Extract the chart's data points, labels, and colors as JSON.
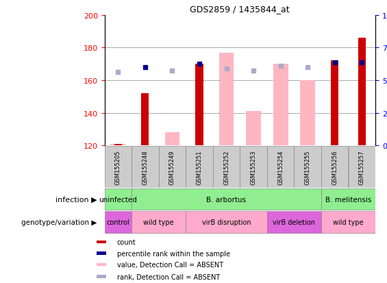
{
  "title": "GDS2859 / 1435844_at",
  "samples": [
    "GSM155205",
    "GSM155248",
    "GSM155249",
    "GSM155251",
    "GSM155252",
    "GSM155253",
    "GSM155254",
    "GSM155255",
    "GSM155256",
    "GSM155257"
  ],
  "red_bar_values": [
    121,
    152,
    null,
    170,
    null,
    null,
    null,
    null,
    172,
    186
  ],
  "pink_bar_values": [
    121,
    null,
    128,
    null,
    177,
    141,
    170,
    160,
    null,
    null
  ],
  "blue_dot_values": [
    null,
    168,
    null,
    170,
    null,
    null,
    null,
    null,
    171,
    171
  ],
  "lightblue_dot_values": [
    165,
    null,
    166,
    null,
    167,
    166,
    169,
    168,
    null,
    null
  ],
  "ylim": [
    120,
    200
  ],
  "yticks": [
    120,
    140,
    160,
    180,
    200
  ],
  "red_color": "#cc0000",
  "pink_color": "#ffb6c1",
  "blue_color": "#00008b",
  "lightblue_color": "#aaaacc",
  "sample_box_color": "#cccccc",
  "infection_groups": [
    {
      "label": "uninfected",
      "start": 0,
      "end": 1,
      "color": "#90ee90"
    },
    {
      "label": "B. arbortus",
      "start": 1,
      "end": 8,
      "color": "#90ee90"
    },
    {
      "label": "B. melitensis",
      "start": 8,
      "end": 10,
      "color": "#90ee90"
    }
  ],
  "genotype_groups": [
    {
      "label": "control",
      "start": 0,
      "end": 1,
      "color": "#dd66dd"
    },
    {
      "label": "wild type",
      "start": 1,
      "end": 3,
      "color": "#ffaacc"
    },
    {
      "label": "virB disruption",
      "start": 3,
      "end": 6,
      "color": "#ffaacc"
    },
    {
      "label": "virB deletion",
      "start": 6,
      "end": 8,
      "color": "#dd66dd"
    },
    {
      "label": "wild type",
      "start": 8,
      "end": 10,
      "color": "#ffaacc"
    }
  ],
  "legend_labels": [
    "count",
    "percentile rank within the sample",
    "value, Detection Call = ABSENT",
    "rank, Detection Call = ABSENT"
  ],
  "legend_colors": [
    "#cc0000",
    "#00008b",
    "#ffb6c1",
    "#aaaacc"
  ]
}
